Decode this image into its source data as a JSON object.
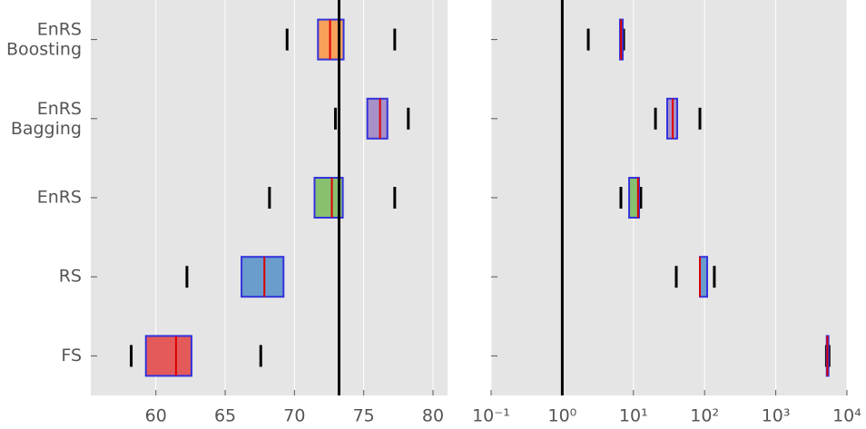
{
  "chart_data": [
    {
      "type": "box",
      "log": false,
      "grid": true,
      "categories": [
        "EnRS Boosting",
        "EnRS Bagging",
        "EnRS",
        "RS",
        "FS"
      ],
      "boxes": [
        {
          "low": 69.47,
          "q1": 71.7,
          "median": 72.57,
          "q3": 73.55,
          "high": 77.24,
          "color": "#f8a15a"
        },
        {
          "low": 72.96,
          "q1": 75.26,
          "median": 76.18,
          "q3": 76.71,
          "high": 78.22,
          "color": "#a890c8"
        },
        {
          "low": 68.2,
          "q1": 71.45,
          "median": 72.7,
          "q3": 73.49,
          "high": 77.24,
          "color": "#88c070"
        },
        {
          "low": 62.24,
          "q1": 66.18,
          "median": 67.83,
          "q3": 69.21,
          "high": null,
          "color": "#6a9ccc"
        },
        {
          "low": 58.22,
          "q1": 59.28,
          "median": 61.45,
          "q3": 62.57,
          "high": 67.57,
          "color": "#e45a5a"
        }
      ],
      "reference_line": 73.22,
      "xlim": [
        55.3,
        81.05
      ],
      "xticks": [
        60,
        65,
        70,
        75,
        80
      ]
    },
    {
      "type": "box",
      "log": true,
      "grid": true,
      "boxes": [
        {
          "low": 2.32,
          "q1": 6.47,
          "median": 6.7,
          "q3": 7.08,
          "high": 7.28,
          "color": "#f8a15a"
        },
        {
          "low": 20.4,
          "q1": 29.8,
          "median": 35.6,
          "q3": 41.2,
          "high": 85.9,
          "color": "#a890c8"
        },
        {
          "low": 6.67,
          "q1": 8.7,
          "median": 11.6,
          "q3": 12.0,
          "high": 12.7,
          "color": "#88c070"
        },
        {
          "low": 40,
          "q1": 85.9,
          "median": 85.9,
          "q3": 108.6,
          "high": 137,
          "color": "#6a9ccc"
        },
        {
          "low": 5150,
          "q1": 5200,
          "median": 5300,
          "q3": 5500,
          "high": 5600,
          "color": "#e45a5a"
        }
      ],
      "reference_line": 1,
      "xlim": [
        0.1,
        10000
      ],
      "xticks": [
        {
          "value": 0.1,
          "label": "10⁻¹"
        },
        {
          "value": 1,
          "label": "10⁰"
        },
        {
          "value": 10,
          "label": "10¹"
        },
        {
          "value": 100,
          "label": "10²"
        },
        {
          "value": 1000,
          "label": "10³"
        },
        {
          "value": 10000,
          "label": "10⁴"
        }
      ]
    }
  ]
}
